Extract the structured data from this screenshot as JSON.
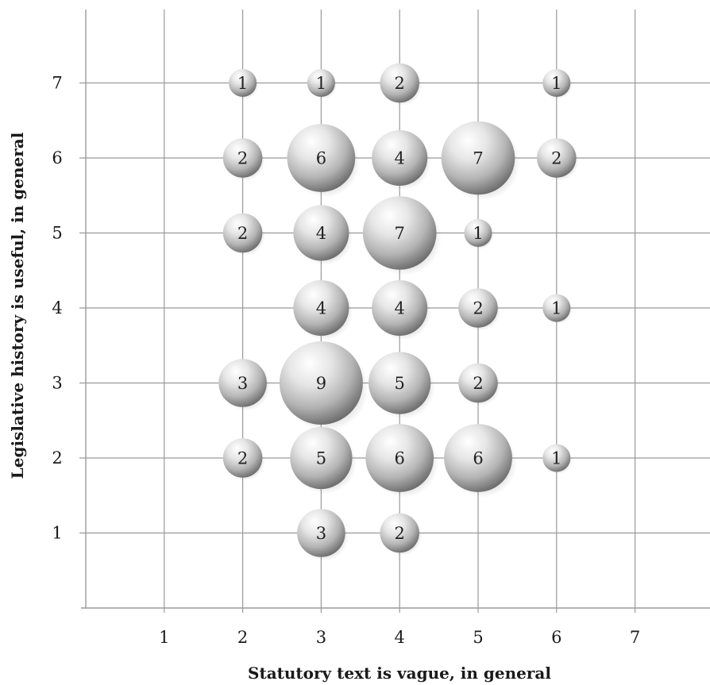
{
  "chart_data": {
    "type": "bubble",
    "xlabel": "Statutory text is vague, in general",
    "ylabel": "Legislative history is useful, in general",
    "xlim": [
      0,
      8
    ],
    "ylim": [
      0,
      8
    ],
    "xticks": [
      1,
      2,
      3,
      4,
      5,
      6,
      7
    ],
    "yticks": [
      1,
      2,
      3,
      4,
      5,
      6,
      7
    ],
    "grid": true,
    "points": [
      {
        "x": 2,
        "y": 7,
        "count": 1
      },
      {
        "x": 3,
        "y": 7,
        "count": 1
      },
      {
        "x": 4,
        "y": 7,
        "count": 2
      },
      {
        "x": 6,
        "y": 7,
        "count": 1
      },
      {
        "x": 2,
        "y": 6,
        "count": 2
      },
      {
        "x": 3,
        "y": 6,
        "count": 6
      },
      {
        "x": 4,
        "y": 6,
        "count": 4
      },
      {
        "x": 5,
        "y": 6,
        "count": 7
      },
      {
        "x": 6,
        "y": 6,
        "count": 2
      },
      {
        "x": 2,
        "y": 5,
        "count": 2
      },
      {
        "x": 3,
        "y": 5,
        "count": 4
      },
      {
        "x": 4,
        "y": 5,
        "count": 7
      },
      {
        "x": 5,
        "y": 5,
        "count": 1
      },
      {
        "x": 3,
        "y": 4,
        "count": 4
      },
      {
        "x": 4,
        "y": 4,
        "count": 4
      },
      {
        "x": 5,
        "y": 4,
        "count": 2
      },
      {
        "x": 6,
        "y": 4,
        "count": 1
      },
      {
        "x": 2,
        "y": 3,
        "count": 3
      },
      {
        "x": 3,
        "y": 3,
        "count": 9
      },
      {
        "x": 4,
        "y": 3,
        "count": 5
      },
      {
        "x": 5,
        "y": 3,
        "count": 2
      },
      {
        "x": 2,
        "y": 2,
        "count": 2
      },
      {
        "x": 3,
        "y": 2,
        "count": 5
      },
      {
        "x": 4,
        "y": 2,
        "count": 6
      },
      {
        "x": 5,
        "y": 2,
        "count": 6
      },
      {
        "x": 6,
        "y": 2,
        "count": 1
      },
      {
        "x": 3,
        "y": 1,
        "count": 3
      },
      {
        "x": 4,
        "y": 1,
        "count": 2
      }
    ],
    "colors": {
      "grid": "#9a9a9a",
      "bubble_light": "#ffffff",
      "bubble_mid": "#c8c8c8",
      "bubble_dark": "#5a5a5a"
    }
  }
}
